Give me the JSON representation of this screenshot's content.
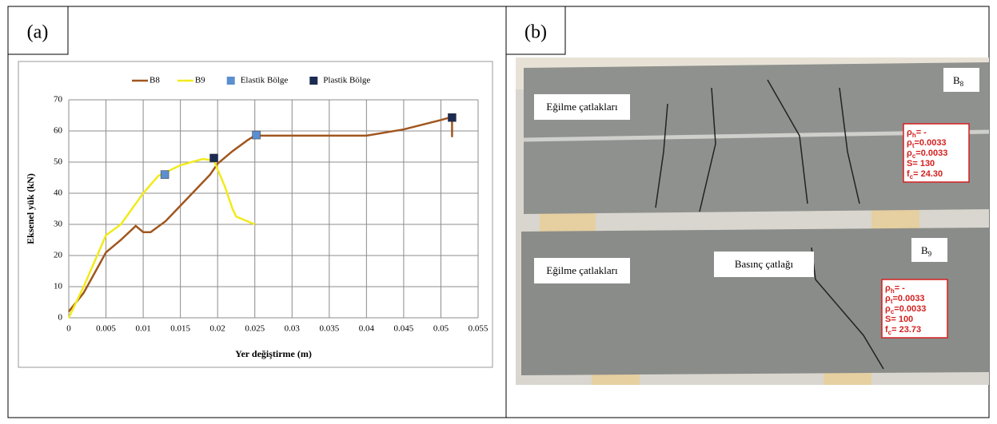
{
  "panels": {
    "left_label": "(a)",
    "right_label": "(b)"
  },
  "chart_data": {
    "type": "line",
    "xlabel": "Yer değiştirme (m)",
    "ylabel": "Eksenel yük (kN)",
    "xlim": [
      0,
      0.055
    ],
    "xticks": [
      0,
      0.005,
      0.01,
      0.015,
      0.02,
      0.025,
      0.03,
      0.035,
      0.04,
      0.045,
      0.05,
      0.055
    ],
    "ylim": [
      0,
      70
    ],
    "yticks": [
      0,
      10,
      20,
      30,
      40,
      50,
      60,
      70
    ],
    "grid": true,
    "legend": "top",
    "series": [
      {
        "name": "B8",
        "color": "#a0561e",
        "style": "line",
        "x": [
          0,
          0.002,
          0.005,
          0.007,
          0.009,
          0.0095,
          0.01,
          0.011,
          0.013,
          0.015,
          0.017,
          0.019,
          0.02,
          0.022,
          0.024,
          0.025,
          0.03,
          0.04,
          0.045,
          0.05,
          0.0515,
          0.0515
        ],
        "values": [
          2,
          8,
          21,
          25,
          29.5,
          28.5,
          27.5,
          27.5,
          31,
          36,
          41,
          46,
          49.5,
          53.5,
          57,
          58.5,
          58.5,
          58.5,
          60.5,
          63.5,
          64.5,
          58
        ]
      },
      {
        "name": "B9",
        "color": "#f2ea1a",
        "style": "line",
        "x": [
          0,
          0.002,
          0.005,
          0.007,
          0.01,
          0.012,
          0.015,
          0.018,
          0.0195,
          0.021,
          0.022,
          0.0225,
          0.0235,
          0.025
        ],
        "values": [
          0,
          10,
          26.5,
          30,
          40,
          45.5,
          49,
          51,
          50.5,
          42,
          35,
          32.5,
          31.5,
          30
        ]
      },
      {
        "name": "Elastik Bölge",
        "color": "#5b8fd0",
        "style": "square",
        "x": [
          0.0129,
          0.0252
        ],
        "values": [
          46,
          58.7
        ]
      },
      {
        "name": "Plastik Bölge",
        "color": "#1c2b52",
        "style": "square",
        "x": [
          0.0195,
          0.0515
        ],
        "values": [
          51.3,
          64.3
        ]
      }
    ]
  },
  "photo": {
    "labels": [
      "Eğilme çatlakları",
      "Eğilme çatlakları",
      "Basınç çatlağı"
    ],
    "specimens": [
      {
        "name": "B",
        "sub": "8",
        "params": [
          {
            "sym": "ρ",
            "sub": "h",
            "text": "= -"
          },
          {
            "sym": "ρ",
            "sub": "t",
            "text": "=0.0033"
          },
          {
            "sym": "ρ",
            "sub": "c",
            "text": "=0.0033"
          },
          {
            "sym": "S",
            "sub": "",
            "text": "= 130"
          },
          {
            "sym": "f",
            "sub": "c",
            "text": "= 24.30"
          }
        ]
      },
      {
        "name": "B",
        "sub": "9",
        "params": [
          {
            "sym": "ρ",
            "sub": "h",
            "text": "= -"
          },
          {
            "sym": "ρ",
            "sub": "t",
            "text": "=0.0033"
          },
          {
            "sym": "ρ",
            "sub": "c",
            "text": "=0.0033"
          },
          {
            "sym": "S",
            "sub": "",
            "text": "= 100"
          },
          {
            "sym": "f",
            "sub": "c",
            "text": "= 23.73"
          }
        ]
      }
    ]
  }
}
